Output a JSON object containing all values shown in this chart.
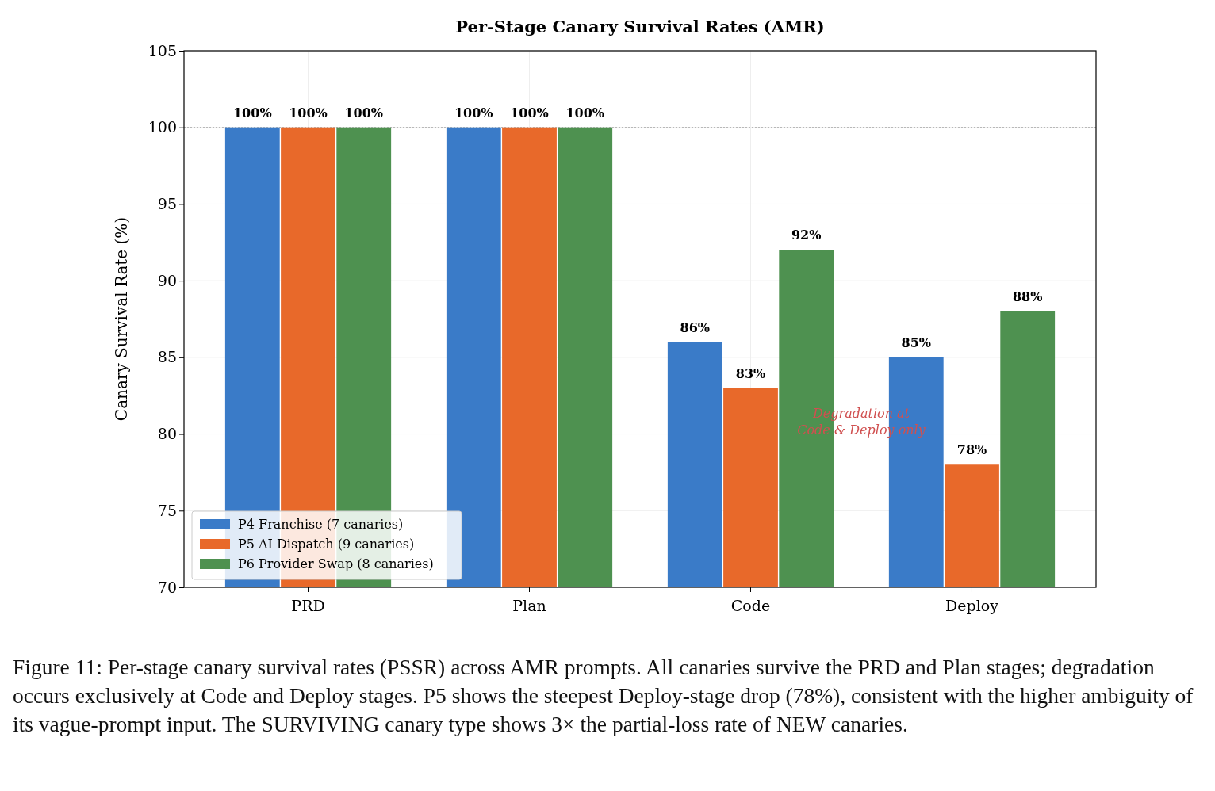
{
  "chart_data": {
    "type": "bar",
    "title": "Per-Stage Canary Survival Rates (AMR)",
    "ylabel": "Canary Survival Rate (%)",
    "categories": [
      "PRD",
      "Plan",
      "Code",
      "Deploy"
    ],
    "series": [
      {
        "name": "P4 Franchise (7 canaries)",
        "color": "#3a7bc8",
        "values": [
          100,
          100,
          86,
          85
        ],
        "value_labels": [
          "100%",
          "100%",
          "86%",
          "85%"
        ]
      },
      {
        "name": "P5 AI Dispatch (9 canaries)",
        "color": "#e8692a",
        "values": [
          100,
          100,
          83,
          78
        ],
        "value_labels": [
          "100%",
          "100%",
          "83%",
          "78%"
        ]
      },
      {
        "name": "P6 Provider Swap (8 canaries)",
        "color": "#4e9150",
        "values": [
          100,
          100,
          92,
          88
        ],
        "value_labels": [
          "100%",
          "100%",
          "92%",
          "88%"
        ]
      }
    ],
    "ylim": [
      70,
      105
    ],
    "yticks": [
      70,
      75,
      80,
      85,
      90,
      95,
      100,
      105
    ],
    "grid": true,
    "legend": "bottom left",
    "ref_lines": [
      {
        "axis": "y",
        "value": 100,
        "color": "#aaaaaa",
        "line_style": "dotted"
      }
    ],
    "annotations": [
      "Degradation at\nCode & Deploy only",
      "Figure 11: Per-stage canary survival rates (PSSR) across AMR prompts. All canaries survive the PRD and Plan stages; degradation occurs exclusively at Code and Deploy stages. P5 shows the steepest Deploy-stage drop (78%), consistent with the higher ambiguity of its vague-prompt input. The SURVIVING canary type shows 3× the partial-loss rate of NEW canaries."
    ]
  }
}
